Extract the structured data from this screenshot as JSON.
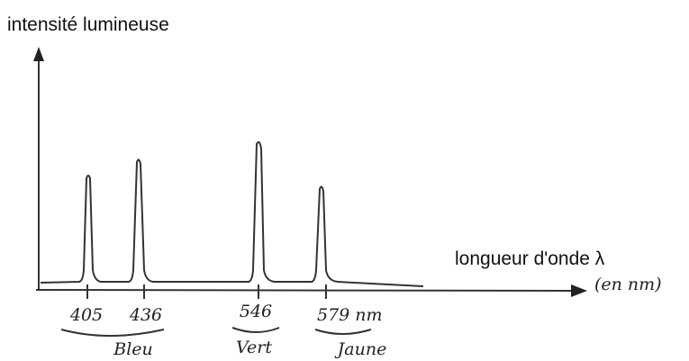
{
  "y_axis_label": "intensité lumineuse",
  "x_axis_label": "longueur d'onde λ",
  "x_unit": "(en nm)",
  "ticks": [
    "405",
    "436",
    "546",
    "579 nm"
  ],
  "groups": [
    "Bleu",
    "Vert",
    "Jaune"
  ]
}
